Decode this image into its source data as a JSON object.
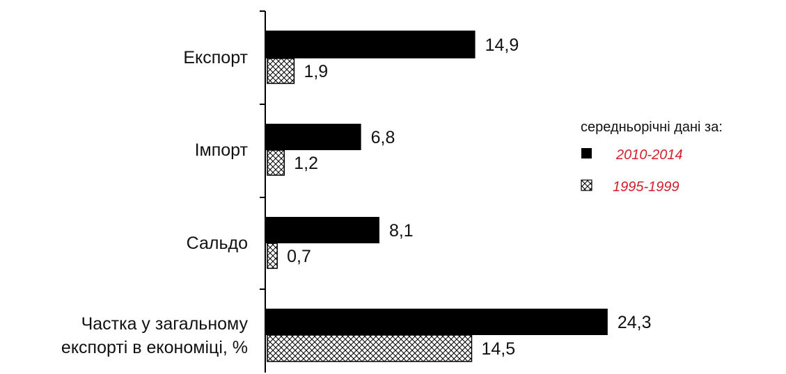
{
  "chart_data": {
    "type": "bar",
    "orientation": "horizontal",
    "categories": [
      [
        "Експорт"
      ],
      [
        "Імпорт"
      ],
      [
        "Сальдо"
      ],
      [
        "Частка у загальному",
        "експорті в економіці, %"
      ]
    ],
    "series": [
      {
        "name": "2010-2014",
        "values": [
          14.9,
          6.8,
          8.1,
          24.3
        ],
        "value_labels": [
          "14,9",
          "6,8",
          "8,1",
          "24,3"
        ],
        "color": "#000000",
        "pattern": "solid"
      },
      {
        "name": "1995-1999",
        "values": [
          1.9,
          1.2,
          0.7,
          14.5
        ],
        "value_labels": [
          "1,9",
          "1,2",
          "0,7",
          "14,5"
        ],
        "color": "#000000",
        "pattern": "crosshatch"
      }
    ],
    "legend": {
      "title": "середньорічні дані за:",
      "placement": "right",
      "text_color": "#d2202a"
    },
    "xlim": [
      0,
      25
    ],
    "grid": false,
    "title": "",
    "xlabel": "",
    "ylabel": ""
  }
}
